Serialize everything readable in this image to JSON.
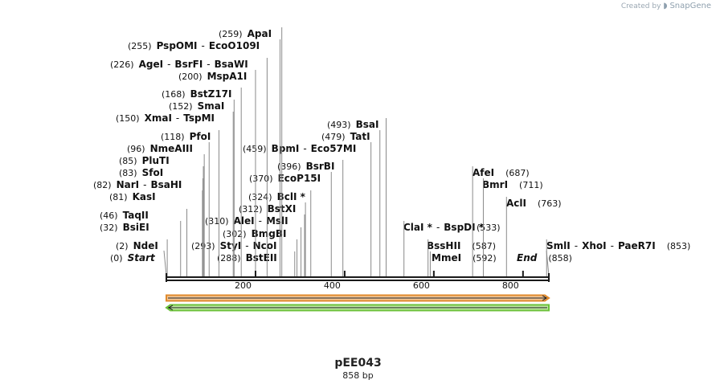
{
  "credit": {
    "prefix": "Created by",
    "brand": "SnapGene"
  },
  "title": "pEE043",
  "subtitle": "858 bp",
  "colors": {
    "backbone": "#1a1a1a",
    "feature_forward_fill": "#f3c89a",
    "feature_forward_stroke": "#e08a2c",
    "feature_reverse_fill": "#bfe8a2",
    "feature_reverse_stroke": "#6cc13a",
    "leader_line": "#8a8a8a"
  },
  "ruler": {
    "length": 858,
    "ticks": [
      "200",
      "400",
      "600",
      "800"
    ]
  },
  "features": [
    {
      "direction": "forward",
      "start": 0,
      "end": 858
    },
    {
      "direction": "reverse",
      "start": 0,
      "end": 858
    }
  ],
  "site_labels": [
    {
      "pos": "(0)",
      "names": [
        "Start"
      ],
      "site": 0,
      "end_label": true
    },
    {
      "pos": "(2)",
      "names": [
        "NdeI"
      ],
      "site": 2
    },
    {
      "pos": "(32)",
      "names": [
        "BsiEI"
      ],
      "site": 32
    },
    {
      "pos": "(46)",
      "names": [
        "TaqII"
      ],
      "site": 46
    },
    {
      "pos": "(81)",
      "names": [
        "KasI"
      ],
      "site": 81
    },
    {
      "pos": "(82)",
      "names": [
        "NarI",
        "BsaHI"
      ],
      "site": 82
    },
    {
      "pos": "(83)",
      "names": [
        "SfoI"
      ],
      "site": 83
    },
    {
      "pos": "(85)",
      "names": [
        "PluTI"
      ],
      "site": 85
    },
    {
      "pos": "(96)",
      "names": [
        "NmeAIII"
      ],
      "site": 96
    },
    {
      "pos": "(118)",
      "names": [
        "PfoI"
      ],
      "site": 118
    },
    {
      "pos": "(150)",
      "names": [
        "XmaI",
        "TspMI"
      ],
      "site": 150
    },
    {
      "pos": "(152)",
      "names": [
        "SmaI"
      ],
      "site": 152
    },
    {
      "pos": "(168)",
      "names": [
        "BstZ17I"
      ],
      "site": 168
    },
    {
      "pos": "(200)",
      "names": [
        "MspA1I"
      ],
      "site": 200
    },
    {
      "pos": "(226)",
      "names": [
        "AgeI",
        "BsrFI",
        "BsaWI"
      ],
      "site": 226
    },
    {
      "pos": "(255)",
      "names": [
        "PspOMI",
        "EcoO109I"
      ],
      "site": 255
    },
    {
      "pos": "(259)",
      "names": [
        "ApaI"
      ],
      "site": 259
    },
    {
      "pos": "(288)",
      "names": [
        "BstEII"
      ],
      "site": 288
    },
    {
      "pos": "(293)",
      "names": [
        "StyI",
        "NcoI"
      ],
      "site": 293
    },
    {
      "pos": "(302)",
      "names": [
        "BmgBI"
      ],
      "site": 302
    },
    {
      "pos": "(310)",
      "names": [
        "AleI",
        "MslI"
      ],
      "site": 310
    },
    {
      "pos": "(312)",
      "names": [
        "BstXI"
      ],
      "site": 312
    },
    {
      "pos": "(324)",
      "names": [
        "BclI *"
      ],
      "site": 324
    },
    {
      "pos": "(370)",
      "names": [
        "EcoP15I"
      ],
      "site": 370
    },
    {
      "pos": "(396)",
      "names": [
        "BsrBI"
      ],
      "site": 396
    },
    {
      "pos": "(459)",
      "names": [
        "BpmI",
        "Eco57MI"
      ],
      "site": 459
    },
    {
      "pos": "(479)",
      "names": [
        "TatI"
      ],
      "site": 479
    },
    {
      "pos": "(493)",
      "names": [
        "BsaI"
      ],
      "site": 493
    },
    {
      "pos": "",
      "names": [
        "ClaI *",
        "BspDI *"
      ],
      "site": 533
    },
    {
      "pos": "(533)",
      "names": [],
      "site": 533
    },
    {
      "pos": "(587)",
      "names": [
        "BssHII"
      ],
      "site": 587
    },
    {
      "pos": "(592)",
      "names": [
        "MmeI"
      ],
      "site": 592
    },
    {
      "pos": "(687)",
      "names": [
        "AfeI"
      ],
      "site": 687
    },
    {
      "pos": "(711)",
      "names": [
        "BmrI"
      ],
      "site": 711
    },
    {
      "pos": "(763)",
      "names": [
        "AclI"
      ],
      "site": 763
    },
    {
      "pos": "(853)",
      "names": [
        "SmlI",
        "XhoI",
        "PaeR7I"
      ],
      "site": 853
    },
    {
      "pos": "(858)",
      "names": [
        "End"
      ],
      "site": 858,
      "end_label": true
    }
  ]
}
